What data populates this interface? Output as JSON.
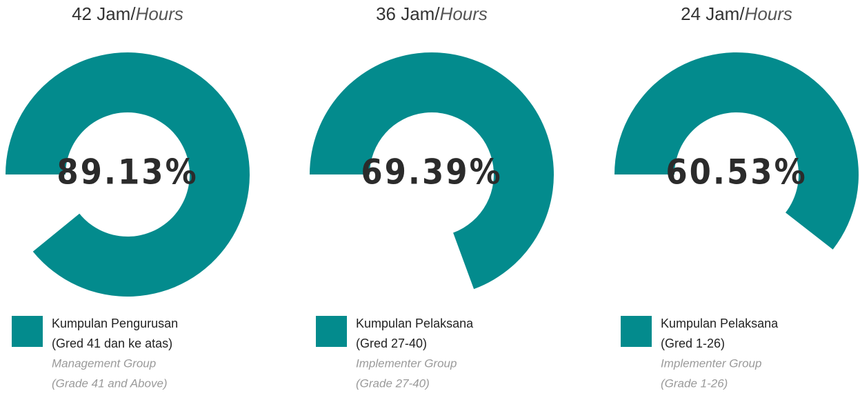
{
  "chart_data": [
    {
      "type": "donut",
      "title": [
        "42 Jam/",
        "Hours"
      ],
      "series": [
        {
          "name": [
            "Kumpulan Pengurusan",
            "(Gred 41 dan ke atas)"
          ],
          "name_en": [
            "Management Group",
            "(Grade 41 and Above)"
          ],
          "color": "#038b8d",
          "values": [
            89.13
          ],
          "value_labels": [
            "89.13%"
          ]
        }
      ]
    },
    {
      "type": "donut",
      "title": [
        "36 Jam/",
        "Hours"
      ],
      "series": [
        {
          "name": [
            "Kumpulan Pelaksana",
            "(Gred  27-40)"
          ],
          "name_en": [
            "Implementer Group",
            "(Grade 27-40)"
          ],
          "color": "#038b8d",
          "values": [
            69.39
          ],
          "value_labels": [
            "69.39%"
          ]
        }
      ]
    },
    {
      "type": "donut",
      "title": [
        "24 Jam/",
        "Hours"
      ],
      "series": [
        {
          "name": [
            "Kumpulan Pelaksana",
            "(Gred 1-26)"
          ],
          "name_en": [
            "Implementer Group",
            "(Grade 1-26)"
          ],
          "color": "#038b8d",
          "values": [
            60.53
          ],
          "value_labels": [
            "60.53%"
          ]
        }
      ]
    }
  ]
}
